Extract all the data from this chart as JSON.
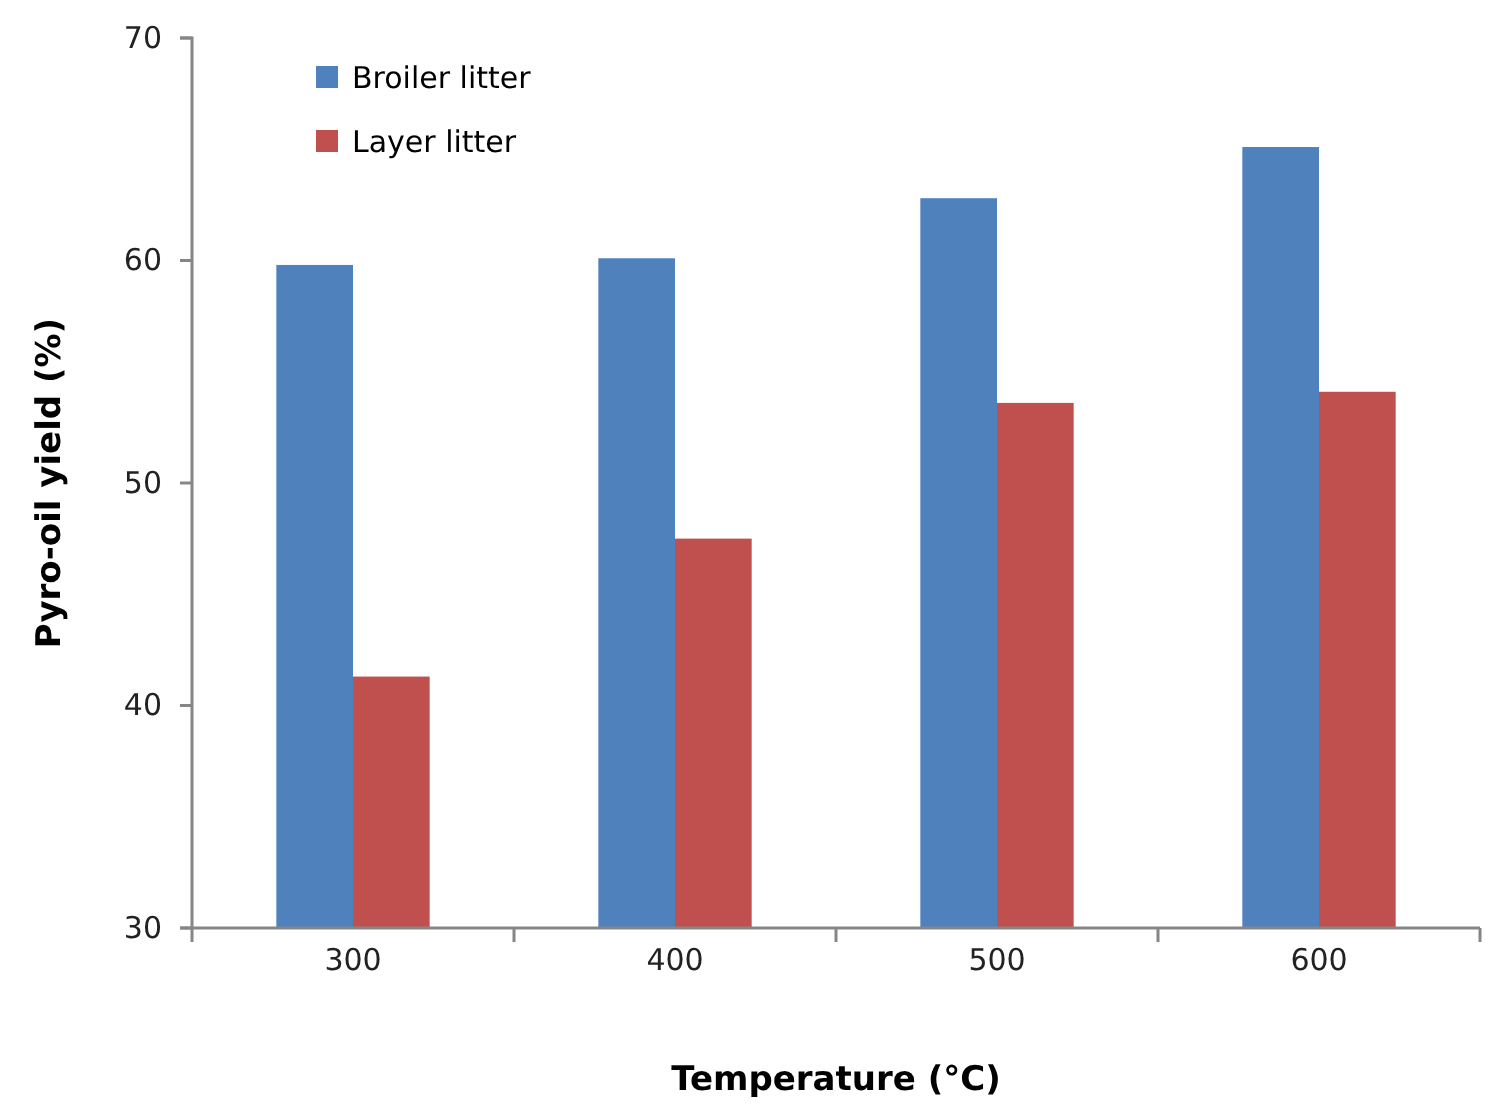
{
  "chart_data": {
    "type": "bar",
    "xlabel": "Temperature (°C)",
    "ylabel": "Pyro-oil yield (%)",
    "categories": [
      "300",
      "400",
      "500",
      "600"
    ],
    "series": [
      {
        "name": "Broiler litter",
        "color": "#4f81bd",
        "values": [
          59.8,
          60.1,
          62.8,
          65.1
        ]
      },
      {
        "name": "Layer litter",
        "color": "#c0504d",
        "values": [
          41.3,
          47.5,
          53.6,
          54.1
        ]
      }
    ],
    "ylim": [
      30,
      70
    ],
    "yticks": [
      30,
      40,
      50,
      60,
      70
    ],
    "grid": false,
    "legend": "top left"
  }
}
